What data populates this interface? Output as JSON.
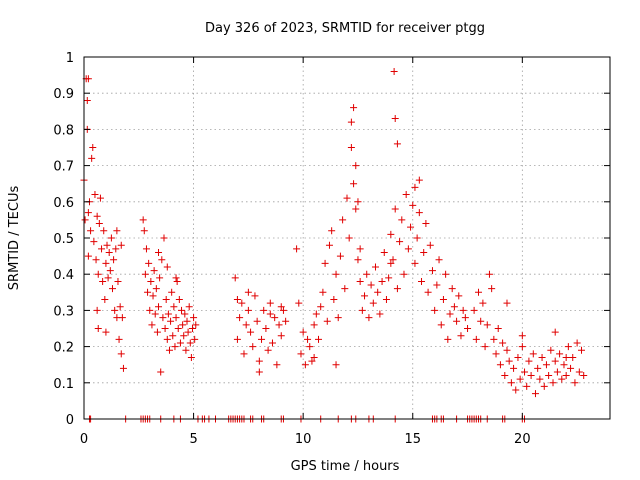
{
  "chart_data": {
    "type": "scatter",
    "title": "Day 326 of 2023, SRMTID for receiver ptgg",
    "xlabel": "GPS time / hours",
    "ylabel": "SRMTID / TECUs",
    "xlim": [
      0,
      24
    ],
    "ylim": [
      0,
      1
    ],
    "xticks": [
      0,
      5,
      10,
      15,
      20
    ],
    "xtick_labels": [
      "0",
      "5",
      "10",
      "15",
      "20"
    ],
    "yticks": [
      0,
      0.1,
      0.2,
      0.3,
      0.4,
      0.5,
      0.6,
      0.7,
      0.8,
      0.9,
      1
    ],
    "ytick_labels": [
      "0",
      "0.1",
      "0.2",
      "0.3",
      "0.4",
      "0.5",
      "0.6",
      "0.7",
      "0.8",
      "0.9",
      "1"
    ],
    "grid": true,
    "marker": "+",
    "color": "#e00000",
    "series": [
      {
        "name": "SRMTID",
        "x": [
          0.0,
          0.05,
          0.1,
          0.15,
          0.2,
          0.2,
          0.25,
          0.3,
          0.35,
          0.4,
          0.45,
          0.5,
          0.55,
          0.6,
          0.65,
          0.7,
          0.75,
          0.8,
          0.85,
          0.9,
          0.95,
          1.0,
          1.05,
          1.1,
          1.15,
          1.2,
          1.25,
          1.3,
          1.35,
          1.4,
          1.45,
          1.5,
          1.55,
          1.6,
          1.65,
          1.7,
          1.75,
          1.8,
          0.15,
          0.2,
          0.6,
          0.65,
          1.0,
          1.5,
          1.7,
          2.7,
          2.75,
          2.8,
          2.85,
          2.9,
          2.95,
          3.0,
          3.05,
          3.1,
          3.15,
          3.2,
          3.25,
          3.3,
          3.35,
          3.4,
          3.45,
          3.5,
          3.55,
          3.6,
          3.65,
          3.7,
          3.75,
          3.8,
          3.85,
          3.9,
          3.95,
          4.0,
          4.05,
          4.1,
          4.15,
          4.2,
          4.25,
          4.3,
          4.35,
          4.4,
          4.45,
          4.5,
          4.55,
          4.6,
          4.65,
          4.7,
          4.75,
          4.8,
          4.85,
          4.9,
          4.95,
          5.0,
          5.05,
          5.1,
          3.4,
          3.8,
          4.2,
          6.9,
          7.0,
          7.1,
          7.2,
          7.3,
          7.4,
          7.5,
          7.6,
          7.7,
          7.8,
          7.9,
          8.0,
          8.1,
          8.2,
          8.3,
          8.4,
          8.5,
          8.6,
          8.7,
          8.8,
          8.9,
          9.0,
          9.1,
          9.2,
          7.0,
          7.5,
          8.0,
          8.5,
          9.0,
          9.7,
          9.8,
          9.9,
          10.0,
          10.1,
          10.2,
          10.3,
          10.4,
          10.5,
          10.6,
          10.7,
          10.8,
          10.9,
          11.0,
          11.1,
          11.2,
          11.3,
          11.4,
          11.5,
          11.6,
          11.7,
          11.8,
          11.9,
          12.0,
          12.1,
          12.2,
          12.3,
          12.4,
          12.5,
          12.6,
          12.7,
          12.8,
          12.9,
          13.0,
          13.1,
          13.2,
          13.3,
          13.4,
          13.5,
          13.6,
          13.7,
          13.8,
          13.9,
          14.0,
          12.2,
          12.3,
          12.4,
          12.5,
          12.6,
          10.5,
          11.5,
          14.0,
          14.1,
          14.2,
          14.3,
          14.4,
          14.5,
          14.6,
          14.7,
          14.8,
          14.9,
          15.0,
          15.1,
          15.2,
          15.3,
          15.4,
          15.5,
          15.6,
          15.7,
          15.8,
          15.9,
          16.0,
          16.1,
          16.2,
          16.3,
          16.4,
          16.5,
          16.6,
          16.7,
          16.8,
          16.9,
          17.0,
          17.1,
          17.2,
          17.3,
          17.4,
          17.5,
          14.15,
          14.2,
          14.3,
          15.1,
          15.3,
          17.8,
          17.9,
          18.0,
          18.1,
          18.2,
          18.3,
          18.4,
          18.5,
          18.6,
          18.7,
          18.8,
          18.9,
          19.0,
          19.1,
          19.2,
          19.3,
          19.4,
          19.5,
          19.6,
          19.7,
          19.8,
          19.9,
          20.0,
          20.1,
          20.2,
          20.3,
          20.4,
          20.5,
          20.6,
          20.7,
          20.8,
          20.9,
          21.0,
          21.1,
          21.2,
          21.3,
          21.4,
          21.5,
          21.6,
          21.7,
          21.8,
          21.9,
          22.0,
          22.1,
          22.2,
          22.3,
          22.4,
          22.5,
          22.6,
          22.7,
          22.8,
          19.3,
          20.0,
          21.5,
          22.0,
          0.25,
          0.3,
          1.9,
          2.6,
          2.7,
          2.8,
          2.9,
          3.0,
          3.5,
          4.1,
          4.4,
          5.2,
          5.4,
          5.5,
          5.7,
          6.0,
          6.6,
          6.7,
          6.8,
          6.9,
          7.0,
          7.1,
          7.2,
          7.3,
          7.6,
          7.7,
          8.1,
          8.2,
          9.0,
          9.1,
          9.9,
          10.8,
          11.6,
          12.2,
          12.4,
          13.0,
          13.2,
          14.2,
          15.9,
          16.0,
          16.1,
          16.3,
          16.4,
          17.0,
          17.5,
          17.6,
          17.7,
          17.8,
          17.9,
          18.0,
          18.1,
          18.4,
          19.1,
          19.2,
          20.0,
          20.1
        ],
        "y": [
          0.66,
          0.55,
          0.94,
          0.88,
          0.57,
          0.45,
          0.6,
          0.52,
          0.72,
          0.75,
          0.49,
          0.62,
          0.44,
          0.56,
          0.4,
          0.54,
          0.61,
          0.47,
          0.38,
          0.52,
          0.33,
          0.43,
          0.48,
          0.39,
          0.46,
          0.41,
          0.5,
          0.36,
          0.44,
          0.3,
          0.47,
          0.28,
          0.38,
          0.22,
          0.31,
          0.18,
          0.28,
          0.14,
          0.8,
          0.94,
          0.3,
          0.25,
          0.24,
          0.52,
          0.48,
          0.55,
          0.52,
          0.4,
          0.47,
          0.35,
          0.43,
          0.3,
          0.38,
          0.26,
          0.34,
          0.41,
          0.29,
          0.36,
          0.24,
          0.31,
          0.39,
          0.13,
          0.44,
          0.28,
          0.5,
          0.25,
          0.33,
          0.22,
          0.29,
          0.19,
          0.27,
          0.35,
          0.23,
          0.31,
          0.2,
          0.28,
          0.38,
          0.25,
          0.33,
          0.21,
          0.3,
          0.26,
          0.23,
          0.29,
          0.19,
          0.27,
          0.24,
          0.31,
          0.21,
          0.17,
          0.25,
          0.28,
          0.22,
          0.26,
          0.46,
          0.42,
          0.39,
          0.39,
          0.22,
          0.28,
          0.32,
          0.18,
          0.26,
          0.3,
          0.24,
          0.2,
          0.34,
          0.27,
          0.16,
          0.22,
          0.3,
          0.25,
          0.19,
          0.32,
          0.21,
          0.28,
          0.15,
          0.26,
          0.23,
          0.3,
          0.27,
          0.33,
          0.35,
          0.13,
          0.29,
          0.31,
          0.47,
          0.32,
          0.18,
          0.24,
          0.15,
          0.22,
          0.2,
          0.16,
          0.26,
          0.29,
          0.22,
          0.31,
          0.35,
          0.43,
          0.27,
          0.48,
          0.52,
          0.33,
          0.4,
          0.28,
          0.45,
          0.55,
          0.36,
          0.61,
          0.5,
          0.75,
          0.65,
          0.58,
          0.44,
          0.38,
          0.3,
          0.34,
          0.4,
          0.28,
          0.37,
          0.32,
          0.42,
          0.35,
          0.29,
          0.38,
          0.46,
          0.33,
          0.39,
          0.43,
          0.82,
          0.86,
          0.7,
          0.6,
          0.47,
          0.17,
          0.15,
          0.51,
          0.44,
          0.58,
          0.36,
          0.49,
          0.55,
          0.4,
          0.62,
          0.47,
          0.53,
          0.59,
          0.43,
          0.5,
          0.57,
          0.38,
          0.46,
          0.54,
          0.35,
          0.48,
          0.41,
          0.3,
          0.37,
          0.44,
          0.26,
          0.33,
          0.4,
          0.22,
          0.29,
          0.36,
          0.31,
          0.27,
          0.34,
          0.23,
          0.3,
          0.28,
          0.25,
          0.96,
          0.83,
          0.76,
          0.64,
          0.66,
          0.3,
          0.22,
          0.35,
          0.27,
          0.32,
          0.2,
          0.26,
          0.4,
          0.36,
          0.22,
          0.18,
          0.25,
          0.15,
          0.21,
          0.12,
          0.19,
          0.16,
          0.1,
          0.14,
          0.08,
          0.17,
          0.11,
          0.2,
          0.13,
          0.09,
          0.16,
          0.12,
          0.18,
          0.07,
          0.14,
          0.11,
          0.17,
          0.09,
          0.15,
          0.12,
          0.19,
          0.1,
          0.16,
          0.13,
          0.18,
          0.11,
          0.15,
          0.12,
          0.2,
          0.14,
          0.17,
          0.1,
          0.21,
          0.13,
          0.19,
          0.12,
          0.32,
          0.23,
          0.24,
          0.17,
          0,
          0,
          0,
          0,
          0,
          0,
          0,
          0,
          0,
          0,
          0,
          0,
          0,
          0,
          0,
          0,
          0,
          0,
          0,
          0,
          0,
          0,
          0,
          0,
          0,
          0,
          0,
          0,
          0,
          0,
          0,
          0,
          0,
          0,
          0,
          0,
          0,
          0,
          0,
          0,
          0,
          0,
          0,
          0,
          0,
          0,
          0,
          0,
          0,
          0,
          0,
          0,
          0,
          0,
          0,
          0
        ]
      }
    ]
  }
}
